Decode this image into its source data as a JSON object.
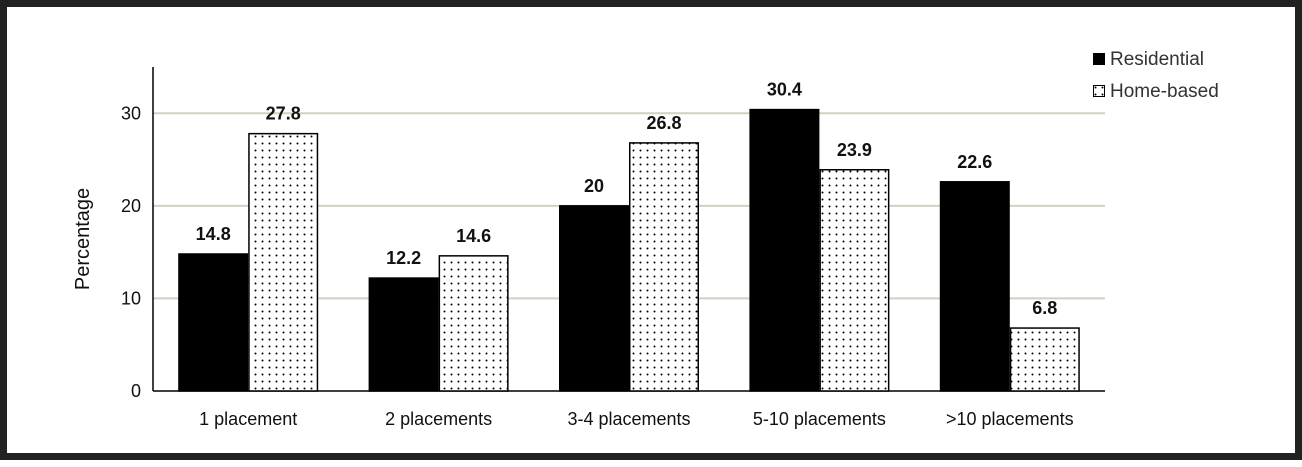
{
  "chart_data": {
    "type": "bar",
    "categories": [
      "1 placement",
      "2 placements",
      "3-4 placements",
      "5-10 placements",
      ">10 placements"
    ],
    "series": [
      {
        "name": "Residential",
        "values": [
          14.8,
          12.2,
          20,
          30.4,
          22.6
        ],
        "color": "#000000",
        "pattern": "solid"
      },
      {
        "name": "Home-based",
        "values": [
          27.8,
          14.6,
          26.8,
          23.9,
          6.8
        ],
        "color": "#ffffff",
        "pattern": "dotted"
      }
    ],
    "data_labels": [
      [
        "14.8",
        "12.2",
        "20",
        "30.4",
        "22.6"
      ],
      [
        "27.8",
        "14.6",
        "26.8",
        "23.9",
        "6.8"
      ]
    ],
    "ylabel": "Percentage",
    "xlabel": "",
    "ylim": [
      0,
      35
    ],
    "yticks": [
      "0",
      "10",
      "20",
      "30"
    ],
    "grid": "horizontal",
    "grid_color": "#d4d0c0",
    "legend_position": "top-right"
  }
}
